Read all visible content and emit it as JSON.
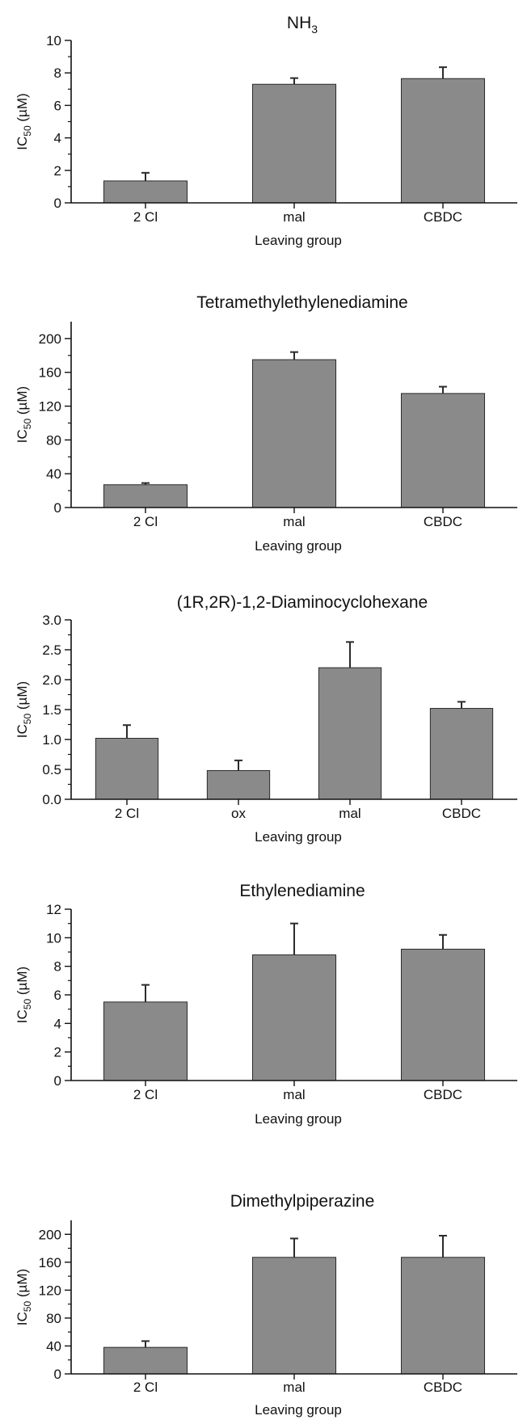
{
  "colors": {
    "bar": "#8a8a8a",
    "bar_edge": "#2b2b2b",
    "axis": "#111111",
    "background": "#ffffff"
  },
  "chart_data": [
    {
      "type": "bar",
      "title": "NH3",
      "title_main": "NH",
      "title_sub": "3",
      "xlabel": "Leaving group",
      "ylabel_main": "IC",
      "ylabel_sub": "50",
      "ylabel_unit": " (µM)",
      "categories": [
        "2 Cl",
        "mal",
        "CBDC"
      ],
      "values": [
        1.35,
        7.3,
        7.65
      ],
      "errors": [
        0.5,
        0.38,
        0.7
      ],
      "ylim": [
        0,
        10
      ],
      "yticks": [
        0,
        2,
        4,
        6,
        8,
        10
      ],
      "ytick_labels": [
        "0",
        "2",
        "4",
        "6",
        "8",
        "10"
      ],
      "grid": false
    },
    {
      "type": "bar",
      "title": "Tetramethylethylenediamine",
      "title_main": "Tetramethylethylenediamine",
      "title_sub": "",
      "xlabel": "Leaving group",
      "ylabel_main": "IC",
      "ylabel_sub": "50",
      "ylabel_unit": " (µM)",
      "categories": [
        "2 Cl",
        "mal",
        "CBDC"
      ],
      "values": [
        27,
        175,
        135
      ],
      "errors": [
        2,
        9,
        8
      ],
      "ylim": [
        0,
        220
      ],
      "yticks": [
        0,
        40,
        80,
        120,
        160,
        200
      ],
      "ytick_labels": [
        "0",
        "40",
        "80",
        "120",
        "160",
        "200"
      ],
      "grid": false
    },
    {
      "type": "bar",
      "title": "(1R,2R)-1,2-Diaminocyclohexane",
      "title_main": "(1R,2R)-1,2-Diaminocyclohexane",
      "title_sub": "",
      "xlabel": "Leaving group",
      "ylabel_main": "IC",
      "ylabel_sub": "50",
      "ylabel_unit": " (µM)",
      "categories": [
        "2 Cl",
        "ox",
        "mal",
        "CBDC"
      ],
      "values": [
        1.02,
        0.48,
        2.2,
        1.52
      ],
      "errors": [
        0.22,
        0.17,
        0.43,
        0.11
      ],
      "ylim": [
        0,
        3.0
      ],
      "yticks": [
        0,
        0.5,
        1.0,
        1.5,
        2.0,
        2.5,
        3.0
      ],
      "ytick_labels": [
        "0.0",
        "0.5",
        "1.0",
        "1.5",
        "2.0",
        "2.5",
        "3.0"
      ],
      "grid": false
    },
    {
      "type": "bar",
      "title": "Ethylenediamine",
      "title_main": "Ethylenediamine",
      "title_sub": "",
      "xlabel": "Leaving group",
      "ylabel_main": "IC",
      "ylabel_sub": "50",
      "ylabel_unit": " (µM)",
      "categories": [
        "2 Cl",
        "mal",
        "CBDC"
      ],
      "values": [
        5.5,
        8.8,
        9.2
      ],
      "errors": [
        1.2,
        2.2,
        1.0
      ],
      "ylim": [
        0,
        12
      ],
      "yticks": [
        0,
        2,
        4,
        6,
        8,
        10,
        12
      ],
      "ytick_labels": [
        "0",
        "2",
        "4",
        "6",
        "8",
        "10",
        "12"
      ],
      "grid": false
    },
    {
      "type": "bar",
      "title": "Dimethylpiperazine",
      "title_main": "Dimethylpiperazine",
      "title_sub": "",
      "xlabel": "Leaving group",
      "ylabel_main": "IC",
      "ylabel_sub": "50",
      "ylabel_unit": " (µM)",
      "categories": [
        "2 Cl",
        "mal",
        "CBDC"
      ],
      "values": [
        38,
        167,
        167
      ],
      "errors": [
        9,
        27,
        31
      ],
      "ylim": [
        0,
        220
      ],
      "yticks": [
        0,
        40,
        80,
        120,
        160,
        200
      ],
      "ytick_labels": [
        "0",
        "40",
        "80",
        "120",
        "160",
        "200"
      ],
      "grid": false
    }
  ]
}
